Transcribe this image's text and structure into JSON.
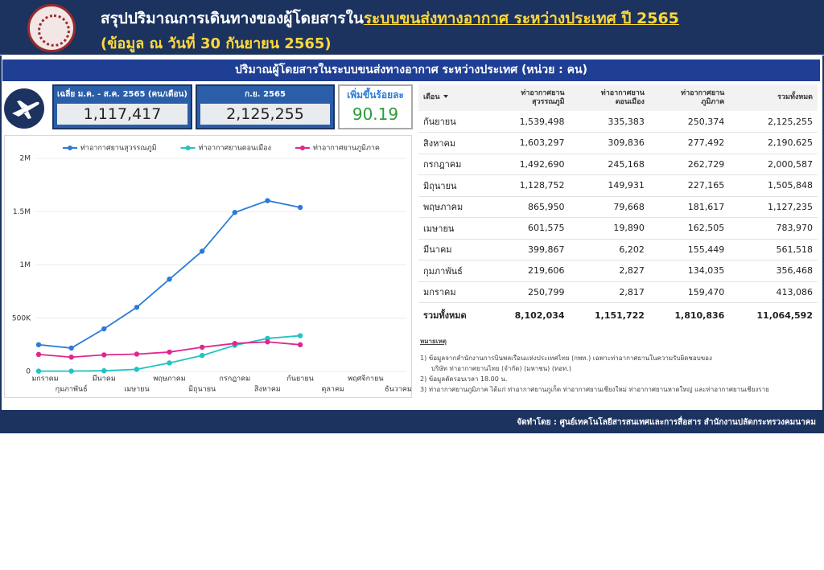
{
  "header": {
    "title": "สรุปปริมาณการเดินทางของผู้โดยสารใน",
    "title_highlight": "ระบบขนส่งทางอากาศ ระหว่างประเทศ ปี 2565",
    "subtitle": "(ข้อมูล ณ วันที่ 30 กันยายน 2565)"
  },
  "section_title": "ปริมาณผู้โดยสารในระบบขนส่งทางอากาศ ระหว่างประเทศ (หน่วย : คน)",
  "kpis": [
    {
      "label": "เฉลี่ย ม.ค. - ส.ค. 2565 (คน/เดือน)",
      "value": "1,117,417"
    },
    {
      "label": "ก.ย. 2565",
      "value": "2,125,255"
    },
    {
      "label": "เพิ่มขึ้นร้อยละ",
      "value": "90.19"
    }
  ],
  "chart_data": {
    "type": "line",
    "categories": [
      "มกราคม",
      "กุมภาพันธ์",
      "มีนาคม",
      "เมษายน",
      "พฤษภาคม",
      "มิถุนายน",
      "กรกฎาคม",
      "สิงหาคม",
      "กันยายน",
      "ตุลาคม",
      "พฤศจิกายน",
      "ธันวาคม"
    ],
    "series": [
      {
        "name": "ท่าอากาศยานสุวรรณภูมิ",
        "color": "#2b7bd8",
        "values": [
          250799,
          219606,
          399867,
          601575,
          865950,
          1128752,
          1492690,
          1603297,
          1539498,
          null,
          null,
          null
        ]
      },
      {
        "name": "ท่าอากาศยานดอนเมือง",
        "color": "#22c3c3",
        "values": [
          2817,
          2827,
          6202,
          19890,
          79668,
          149931,
          245168,
          309836,
          335383,
          null,
          null,
          null
        ]
      },
      {
        "name": "ท่าอากาศยานภูมิภาค",
        "color": "#e0268f",
        "values": [
          159470,
          134035,
          155449,
          162505,
          181617,
          227165,
          262729,
          277492,
          250374,
          null,
          null,
          null
        ]
      }
    ],
    "ylim": [
      0,
      2000000
    ],
    "yticks": [
      0,
      {
        "value": 500000,
        "label": "500K"
      },
      {
        "value": 1000000,
        "label": "1M"
      },
      {
        "value": 1500000,
        "label": "1.5M"
      },
      {
        "value": 2000000,
        "label": "2M"
      }
    ],
    "grid": true,
    "legend": "top"
  },
  "table": {
    "columns": [
      [
        "เดือน"
      ],
      [
        "ท่าอากาศยาน",
        "สุวรรณภูมิ"
      ],
      [
        "ท่าอากาศยาน",
        "ดอนเมือง"
      ],
      [
        "ท่าอากาศยาน",
        "ภูมิภาค"
      ],
      [
        "รวมทั้งหมด"
      ]
    ],
    "rows": [
      [
        "กันยายน",
        "1,539,498",
        "335,383",
        "250,374",
        "2,125,255"
      ],
      [
        "สิงหาคม",
        "1,603,297",
        "309,836",
        "277,492",
        "2,190,625"
      ],
      [
        "กรกฎาคม",
        "1,492,690",
        "245,168",
        "262,729",
        "2,000,587"
      ],
      [
        "มิถุนายน",
        "1,128,752",
        "149,931",
        "227,165",
        "1,505,848"
      ],
      [
        "พฤษภาคม",
        "865,950",
        "79,668",
        "181,617",
        "1,127,235"
      ],
      [
        "เมษายน",
        "601,575",
        "19,890",
        "162,505",
        "783,970"
      ],
      [
        "มีนาคม",
        "399,867",
        "6,202",
        "155,449",
        "561,518"
      ],
      [
        "กุมภาพันธ์",
        "219,606",
        "2,827",
        "134,035",
        "356,468"
      ],
      [
        "มกราคม",
        "250,799",
        "2,817",
        "159,470",
        "413,086"
      ]
    ],
    "total": [
      "รวมทั้งหมด",
      "8,102,034",
      "1,151,722",
      "1,810,836",
      "11,064,592"
    ]
  },
  "notes": {
    "title": "หมายเหตุ",
    "lines": [
      "1) ข้อมูลจากสำนักงานการบินพลเรือนแห่งประเทศไทย (กพท.) เฉพาะท่าอากาศยานในความรับผิดชอบของ",
      "บริษัท ท่าอากาศยานไทย (จำกัด) (มหาชน) (ทอท.)",
      "2) ข้อมูลตัดรอบเวลา 18.00 น.",
      "3) ท่าอากาศยานภูมิภาค ได้แก่ ท่าอากาศยานภูเก็ต ท่าอากาศยานเชียงใหม่ ท่าอากาศยานหาดใหญ่ และท่าอากาศยานเชียงราย"
    ]
  },
  "footer": "จัดทำโดย : ศูนย์เทคโนโลยีสารสนเทศและการสื่อสาร สำนักงานปลัดกระทรวงคมนาคม"
}
